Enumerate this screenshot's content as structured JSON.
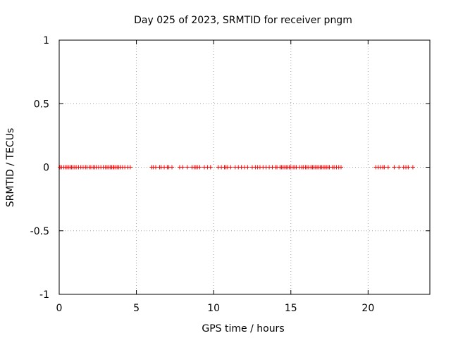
{
  "chart_data": {
    "type": "scatter",
    "title": "Day 025 of 2023, SRMTID for receiver pngm",
    "xlabel": "GPS time / hours",
    "ylabel": "SRMTID / TECUs",
    "xlim": [
      0,
      24
    ],
    "ylim": [
      -1,
      1
    ],
    "xticks": [
      0,
      5,
      10,
      15,
      20
    ],
    "xtick_labels": [
      "0",
      "5",
      "10",
      "15",
      "20"
    ],
    "yticks": [
      -1,
      -0.5,
      0,
      0.5,
      1
    ],
    "ytick_labels": [
      "-1",
      "-0.5",
      "0",
      "0.5",
      "1"
    ],
    "grid": true,
    "marker": "plus",
    "color": "#ff0000",
    "series": [
      {
        "x": [
          0.05,
          0.15,
          0.3,
          0.4,
          0.5,
          0.6,
          0.7,
          0.8,
          0.9,
          1.0,
          1.1,
          1.25,
          1.4,
          1.55,
          1.7,
          1.8,
          1.95,
          2.05,
          2.2,
          2.3,
          2.4,
          2.55,
          2.7,
          2.85,
          3.0,
          3.1,
          3.2,
          3.3,
          3.4,
          3.5,
          3.55,
          3.65,
          3.75,
          3.85,
          3.95,
          4.1,
          4.25,
          4.45,
          4.6,
          6.0,
          6.1,
          6.25,
          6.5,
          6.6,
          6.8,
          7.0,
          7.1,
          7.3,
          7.8,
          8.0,
          8.3,
          8.6,
          8.75,
          8.85,
          8.95,
          9.1,
          9.4,
          9.6,
          9.8,
          10.3,
          10.5,
          10.7,
          10.8,
          10.9,
          11.1,
          11.4,
          11.6,
          11.8,
          12.0,
          12.2,
          12.5,
          12.7,
          12.85,
          13.0,
          13.2,
          13.4,
          13.6,
          13.8,
          14.0,
          14.1,
          14.3,
          14.4,
          14.5,
          14.6,
          14.7,
          14.8,
          14.9,
          15.0,
          15.15,
          15.25,
          15.35,
          15.55,
          15.7,
          15.8,
          15.95,
          16.05,
          16.15,
          16.3,
          16.4,
          16.5,
          16.6,
          16.7,
          16.8,
          16.9,
          17.0,
          17.1,
          17.2,
          17.3,
          17.4,
          17.5,
          17.7,
          17.8,
          17.95,
          18.1,
          18.25,
          20.5,
          20.65,
          20.8,
          20.95,
          21.05,
          21.3,
          21.7,
          22.0,
          22.3,
          22.45,
          22.6,
          22.9
        ],
        "y": [
          0,
          0,
          0,
          0,
          0,
          0,
          0,
          0,
          0,
          0,
          0,
          0,
          0,
          0,
          0,
          0,
          0,
          0,
          0,
          0,
          0,
          0,
          0,
          0,
          0,
          0,
          0,
          0,
          0,
          0,
          0,
          0,
          0,
          0,
          0,
          0,
          0,
          0,
          0,
          0,
          0,
          0,
          0,
          0,
          0,
          0,
          0,
          0,
          0,
          0,
          0,
          0,
          0,
          0,
          0,
          0,
          0,
          0,
          0,
          0,
          0,
          0,
          0,
          0,
          0,
          0,
          0,
          0,
          0,
          0,
          0,
          0,
          0,
          0,
          0,
          0,
          0,
          0,
          0,
          0,
          0,
          0,
          0,
          0,
          0,
          0,
          0,
          0,
          0,
          0,
          0,
          0,
          0,
          0,
          0,
          0,
          0,
          0,
          0,
          0,
          0,
          0,
          0,
          0,
          0,
          0,
          0,
          0,
          0,
          0,
          0,
          0,
          0,
          0,
          0,
          0,
          0,
          0,
          0,
          0,
          0,
          0,
          0,
          0,
          0,
          0,
          0
        ]
      }
    ]
  }
}
